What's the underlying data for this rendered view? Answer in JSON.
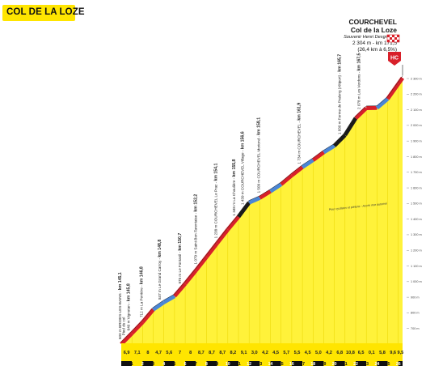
{
  "title": "COL DE LA LOZE",
  "summit": {
    "name_line1": "COURCHEVEL",
    "name_line2": "Col de la Loze",
    "souvenir": "Souvenir Henri Desgrange",
    "alt_km": "2 304 m - km 171,5",
    "climb": "(26,4 km à 6,5%)",
    "category": "HC"
  },
  "colors": {
    "slope_fill": "#fff23a",
    "base_band": "#ffe500",
    "red_section": "#d8202a",
    "blue_section": "#4a86d6",
    "black_section": "#1a1a1a",
    "km_box_black": "#111111",
    "km_box_yellow": "#ffe500"
  },
  "chart_data": {
    "type": "area",
    "title": "COL DE LA LOZE",
    "xlabel": "",
    "ylabel": "",
    "x_unit": "km",
    "y_unit": "m",
    "xlim": [
      0,
      26.4
    ],
    "ylim": [
      600,
      2350
    ],
    "profile": [
      [
        0,
        600
      ],
      [
        1,
        669
      ],
      [
        2,
        740
      ],
      [
        3,
        821
      ],
      [
        4,
        868
      ],
      [
        5,
        907
      ],
      [
        6,
        987
      ],
      [
        7,
        1071
      ],
      [
        8,
        1158
      ],
      [
        9,
        1246
      ],
      [
        10,
        1333
      ],
      [
        11,
        1415
      ],
      [
        12,
        1506
      ],
      [
        13,
        1536
      ],
      [
        14,
        1578
      ],
      [
        15,
        1623
      ],
      [
        16,
        1680
      ],
      [
        17,
        1733
      ],
      [
        18,
        1778
      ],
      [
        19,
        1828
      ],
      [
        20,
        1870
      ],
      [
        21,
        1938
      ],
      [
        22,
        2046
      ],
      [
        23,
        2111
      ],
      [
        24,
        2112
      ],
      [
        25,
        2170
      ],
      [
        26,
        2266
      ],
      [
        26.4,
        2304
      ]
    ],
    "segments": [
      {
        "from": 0,
        "to": 1,
        "color": "red"
      },
      {
        "from": 1,
        "to": 2,
        "color": "red"
      },
      {
        "from": 2,
        "to": 3,
        "color": "red"
      },
      {
        "from": 3,
        "to": 4,
        "color": "blue"
      },
      {
        "from": 4,
        "to": 5,
        "color": "blue"
      },
      {
        "from": 5,
        "to": 6,
        "color": "red"
      },
      {
        "from": 6,
        "to": 7,
        "color": "red"
      },
      {
        "from": 7,
        "to": 8,
        "color": "red"
      },
      {
        "from": 8,
        "to": 9,
        "color": "red"
      },
      {
        "from": 9,
        "to": 10,
        "color": "red"
      },
      {
        "from": 10,
        "to": 11,
        "color": "red"
      },
      {
        "from": 11,
        "to": 12,
        "color": "black"
      },
      {
        "from": 12,
        "to": 13,
        "color": "blue"
      },
      {
        "from": 13,
        "to": 14,
        "color": "red"
      },
      {
        "from": 14,
        "to": 15,
        "color": "blue"
      },
      {
        "from": 15,
        "to": 16,
        "color": "red"
      },
      {
        "from": 16,
        "to": 17,
        "color": "red"
      },
      {
        "from": 17,
        "to": 18,
        "color": "blue"
      },
      {
        "from": 18,
        "to": 19,
        "color": "red"
      },
      {
        "from": 19,
        "to": 20,
        "color": "blue"
      },
      {
        "from": 20,
        "to": 21,
        "color": "black"
      },
      {
        "from": 21,
        "to": 22,
        "color": "black"
      },
      {
        "from": 22,
        "to": 23,
        "color": "red"
      },
      {
        "from": 23,
        "to": 24,
        "color": "red"
      },
      {
        "from": 24,
        "to": 25,
        "color": "blue"
      },
      {
        "from": 25,
        "to": 26,
        "color": "red"
      },
      {
        "from": 26,
        "to": 26.4,
        "color": "red"
      }
    ],
    "gradients": [
      "6,9",
      "7,1",
      "8",
      "4,7",
      "5,6",
      "7",
      "8",
      "8,7",
      "8,7",
      "8,7",
      "8,2",
      "9,1",
      "3,0",
      "4,2",
      "4,5",
      "5,7",
      "5,5",
      "4,5",
      "5,0",
      "4,2",
      "6,8",
      "10,8",
      "6,5",
      "0,1",
      "5,8",
      "9,6",
      "9,5"
    ],
    "gradients_last_group": [
      "5,6",
      "8",
      "8",
      "4"
    ],
    "km_markers": [
      "1",
      "2",
      "3",
      "4",
      "5",
      "6",
      "7",
      "8",
      "9",
      "10",
      "11",
      "12",
      "13",
      "14",
      "15",
      "16",
      "17",
      "18",
      "19",
      "20",
      "21",
      "22",
      "23",
      "24",
      "25",
      "26"
    ],
    "y_ticks": [
      {
        "value": 700,
        "label": "700 m"
      },
      {
        "value": 800,
        "label": "800 m"
      },
      {
        "value": 900,
        "label": "900 m"
      },
      {
        "value": 1000,
        "label": "1 000 m"
      },
      {
        "value": 1100,
        "label": "1 100 m"
      },
      {
        "value": 1200,
        "label": "1 200 m"
      },
      {
        "value": 1300,
        "label": "1 300 m"
      },
      {
        "value": 1400,
        "label": "1 400 m"
      },
      {
        "value": 1500,
        "label": "1 500 m"
      },
      {
        "value": 1600,
        "label": "1 600 m"
      },
      {
        "value": 1700,
        "label": "1 700 m"
      },
      {
        "value": 1800,
        "label": "1 800 m"
      },
      {
        "value": 1900,
        "label": "1 900 m"
      },
      {
        "value": 2000,
        "label": "2 000 m"
      },
      {
        "value": 2100,
        "label": "2 100 m"
      },
      {
        "value": 2200,
        "label": "2 200 m"
      },
      {
        "value": 2300,
        "label": "2 300 m"
      }
    ],
    "waypoints": [
      {
        "km": 0,
        "plain": "600 m BRIDES-LES-BAINS - ",
        "bold": "km 145,1"
      },
      {
        "km": 0.35,
        "plain": "Pied du col",
        "bold": ""
      },
      {
        "km": 0.8,
        "plain": "640 m Vignotan - ",
        "bold": "km 145,8"
      },
      {
        "km": 2.0,
        "plain": "712 m La Perrière - ",
        "bold": "km 146,8"
      },
      {
        "km": 3.7,
        "plain": "847 m Le Grand Carroy - ",
        "bold": "km 148,8"
      },
      {
        "km": 5.6,
        "plain": "975 m Le Fontanil - ",
        "bold": "km 150,7"
      },
      {
        "km": 7.1,
        "plain": "1 079 m Saint-Bon-Tarentaise - ",
        "bold": "km 152,2"
      },
      {
        "km": 9.0,
        "plain": "1 238 m COURCHEVEL Le Praz - ",
        "bold": "km 154,1"
      },
      {
        "km": 10.7,
        "plain": "1 348 m La Choulière - ",
        "bold": "km 155,8"
      },
      {
        "km": 11.5,
        "plain": "1 439 m COURCHEVEL Village - ",
        "bold": "km 156,6"
      },
      {
        "km": 13.0,
        "plain": "1 509 m COURCHEVEL Moriond - ",
        "bold": "km 158,1"
      },
      {
        "km": 16.8,
        "plain": "1 734 m COURCHEVEL - ",
        "bold": "km 161,9"
      },
      {
        "km": 20.6,
        "plain": "1 930 m Ferme de Pralong (Altiport) - ",
        "bold": "km 165,7"
      },
      {
        "km": 22.4,
        "plain": "2 078 m Les Verdons - ",
        "bold": "km 167,5"
      }
    ],
    "annotation": "Pour cyclistes et piétons - Accès non autorisé"
  }
}
